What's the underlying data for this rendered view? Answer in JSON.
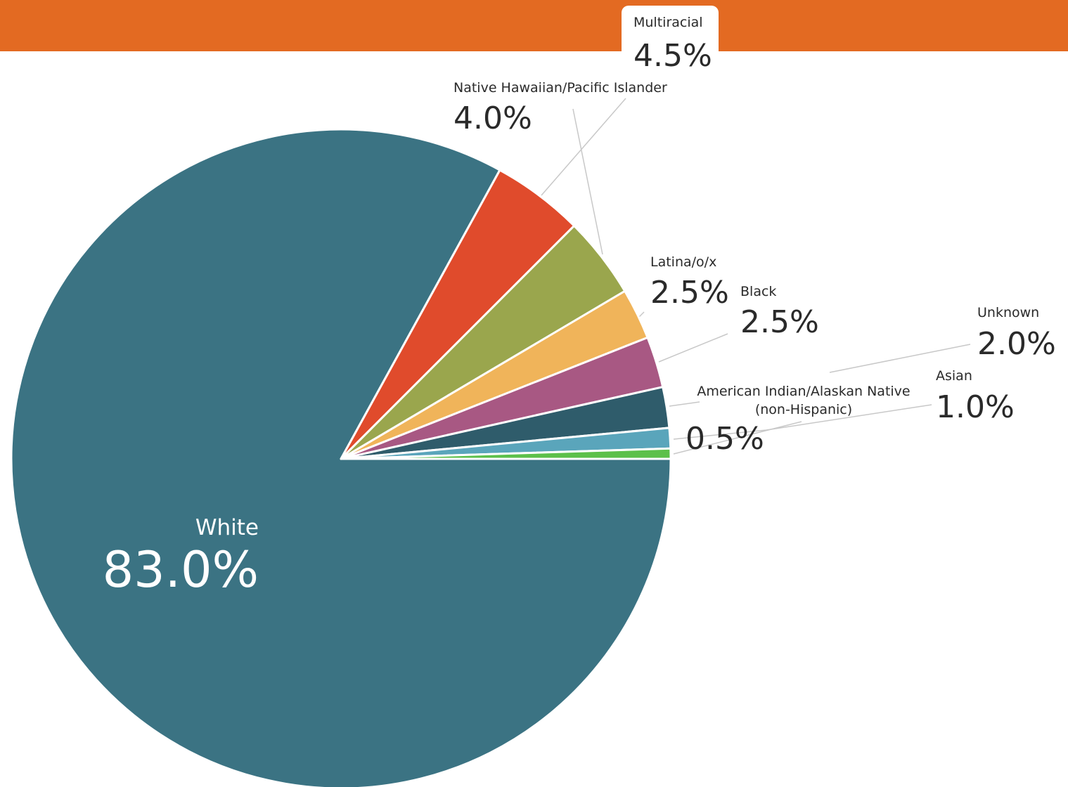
{
  "chart_data": {
    "type": "pie",
    "categories": [
      "White",
      "Multiracial",
      "Native Hawaiian/Pacific Islander",
      "Latina/o/x",
      "Black",
      "Unknown",
      "Asian",
      "American Indian/Alaskan Native\n(non-Hispanic)"
    ],
    "values": [
      83.0,
      4.5,
      4.0,
      2.5,
      2.5,
      2.0,
      1.0,
      0.5
    ],
    "value_labels": [
      "83.0%",
      "4.5%",
      "4.0%",
      "2.5%",
      "2.5%",
      "2.0%",
      "1.0%",
      "0.5%"
    ],
    "colors": [
      "#3b7383",
      "#e04b2c",
      "#9aa64d",
      "#f0b45a",
      "#a85883",
      "#2f5c6b",
      "#5aa5bb",
      "#5cc04a"
    ]
  }
}
